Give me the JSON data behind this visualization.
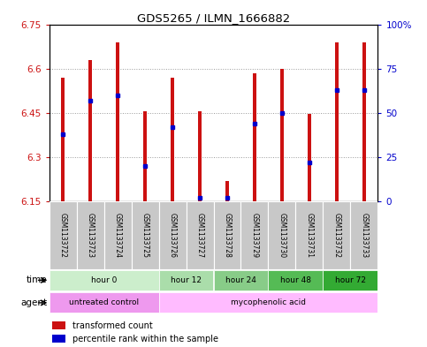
{
  "title": "GDS5265 / ILMN_1666882",
  "samples": [
    "GSM1133722",
    "GSM1133723",
    "GSM1133724",
    "GSM1133725",
    "GSM1133726",
    "GSM1133727",
    "GSM1133728",
    "GSM1133729",
    "GSM1133730",
    "GSM1133731",
    "GSM1133732",
    "GSM1133733"
  ],
  "bar_bottom": 6.15,
  "bar_top": [
    6.57,
    6.63,
    6.69,
    6.455,
    6.57,
    6.455,
    6.22,
    6.585,
    6.6,
    6.445,
    6.69,
    6.69
  ],
  "percentile": [
    38.0,
    57.0,
    60.0,
    20.0,
    42.0,
    2.0,
    2.0,
    44.0,
    50.0,
    22.0,
    63.0,
    63.0
  ],
  "ylim_left": [
    6.15,
    6.75
  ],
  "ylim_right": [
    0,
    100
  ],
  "yticks_left": [
    6.15,
    6.3,
    6.45,
    6.6,
    6.75
  ],
  "ytick_labels_left": [
    "6.15",
    "6.3",
    "6.45",
    "6.6",
    "6.75"
  ],
  "yticks_right": [
    0,
    25,
    50,
    75,
    100
  ],
  "ytick_labels_right": [
    "0",
    "25",
    "50",
    "75",
    "100%"
  ],
  "bar_color": "#cc1111",
  "percentile_color": "#0000cc",
  "time_groups": [
    {
      "label": "hour 0",
      "start": 0,
      "end": 4,
      "color": "#cceecc"
    },
    {
      "label": "hour 12",
      "start": 4,
      "end": 6,
      "color": "#aaddaa"
    },
    {
      "label": "hour 24",
      "start": 6,
      "end": 8,
      "color": "#88cc88"
    },
    {
      "label": "hour 48",
      "start": 8,
      "end": 10,
      "color": "#55bb55"
    },
    {
      "label": "hour 72",
      "start": 10,
      "end": 12,
      "color": "#33aa33"
    }
  ],
  "agent_untreated": {
    "label": "untreated control",
    "start": 0,
    "end": 4,
    "color": "#ee99ee"
  },
  "agent_myco": {
    "label": "mycophenolic acid",
    "start": 4,
    "end": 12,
    "color": "#ffbbff"
  },
  "legend_items": [
    {
      "label": "transformed count",
      "color": "#cc1111"
    },
    {
      "label": "percentile rank within the sample",
      "color": "#0000cc"
    }
  ],
  "left_label_color": "#cc1111",
  "right_label_color": "#0000cc",
  "bar_width": 0.12
}
